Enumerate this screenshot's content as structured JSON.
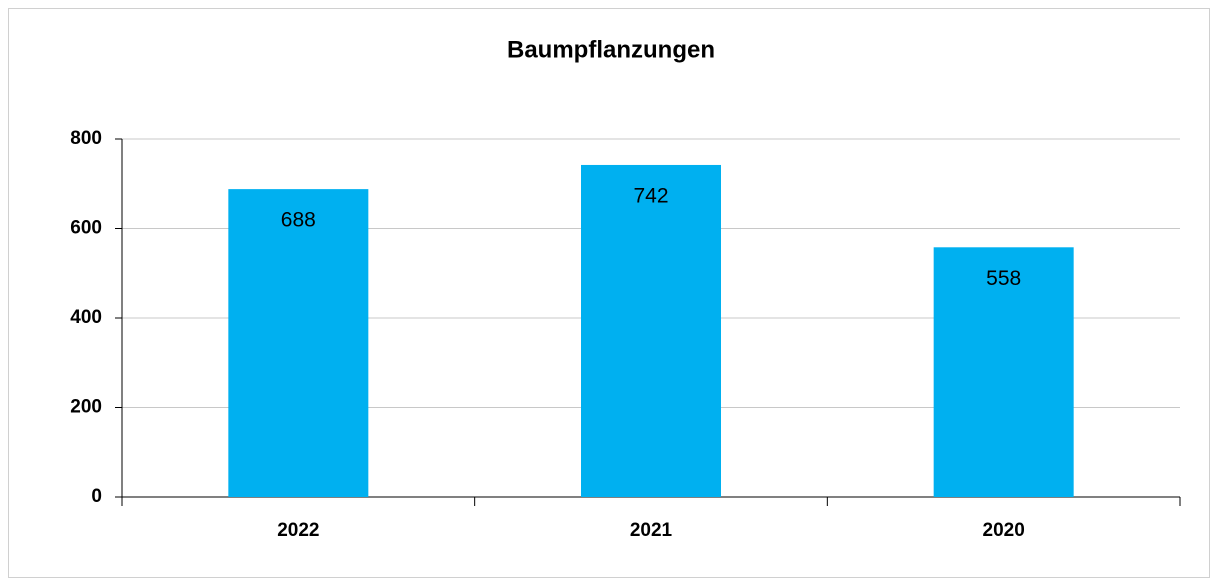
{
  "chart_data": {
    "type": "bar",
    "title": "Baumpflanzungen",
    "categories": [
      "2022",
      "2021",
      "2020"
    ],
    "values": [
      688,
      742,
      558
    ],
    "color": "#00b0f0",
    "ylim": [
      0,
      800
    ],
    "yticks": [
      0,
      200,
      400,
      600,
      800
    ],
    "grid": true
  }
}
